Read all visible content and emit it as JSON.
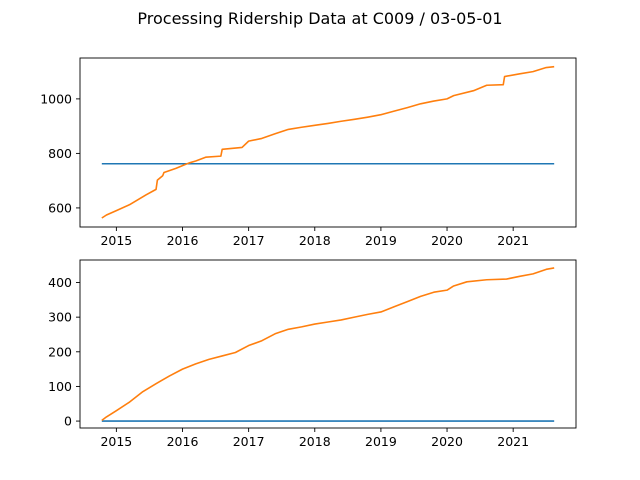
{
  "chart_data": {
    "title": "Processing Ridership Data at C009 / 03-05-01",
    "type": "line",
    "x_ticks": [
      "2015",
      "2016",
      "2017",
      "2018",
      "2019",
      "2020",
      "2021"
    ],
    "x_tick_values": [
      2015,
      2016,
      2017,
      2018,
      2019,
      2020,
      2021
    ],
    "xlim": [
      2014.45,
      2021.95
    ],
    "panels": [
      {
        "name": "top",
        "ylim": [
          530,
          1150
        ],
        "y_ticks": [
          "600",
          "800",
          "1000"
        ],
        "y_tick_values": [
          600,
          800,
          1000
        ],
        "series": [
          {
            "name": "baseline",
            "color": "#1f77b4",
            "x": [
              2014.78,
              2021.62
            ],
            "y": [
              762,
              762
            ]
          },
          {
            "name": "cumulative",
            "color": "#ff7f0e",
            "x": [
              2014.78,
              2014.85,
              2015.0,
              2015.2,
              2015.45,
              2015.6,
              2015.62,
              2015.7,
              2015.72,
              2015.9,
              2016.0,
              2016.1,
              2016.2,
              2016.35,
              2016.58,
              2016.6,
              2016.9,
              2017.0,
              2017.2,
              2017.4,
              2017.6,
              2017.8,
              2018.0,
              2018.2,
              2018.4,
              2018.6,
              2018.8,
              2019.0,
              2019.2,
              2019.4,
              2019.6,
              2019.8,
              2020.0,
              2020.1,
              2020.4,
              2020.6,
              2020.85,
              2020.87,
              2021.1,
              2021.3,
              2021.5,
              2021.62
            ],
            "y": [
              563,
              574,
              590,
              612,
              648,
              668,
              702,
              718,
              730,
              745,
              755,
              765,
              772,
              786,
              790,
              815,
              822,
              845,
              855,
              872,
              888,
              896,
              903,
              910,
              918,
              925,
              933,
              942,
              955,
              968,
              982,
              992,
              1000,
              1012,
              1030,
              1050,
              1052,
              1082,
              1092,
              1100,
              1115,
              1118
            ]
          }
        ]
      },
      {
        "name": "bottom",
        "ylim": [
          -20,
          465
        ],
        "y_ticks": [
          "0",
          "100",
          "200",
          "300",
          "400"
        ],
        "y_tick_values": [
          0,
          100,
          200,
          300,
          400
        ],
        "series": [
          {
            "name": "baseline",
            "color": "#1f77b4",
            "x": [
              2014.78,
              2021.62
            ],
            "y": [
              0,
              0
            ]
          },
          {
            "name": "cumulative",
            "color": "#ff7f0e",
            "x": [
              2014.78,
              2014.85,
              2015.0,
              2015.2,
              2015.4,
              2015.6,
              2015.8,
              2016.0,
              2016.2,
              2016.4,
              2016.6,
              2016.8,
              2017.0,
              2017.2,
              2017.4,
              2017.6,
              2017.8,
              2018.0,
              2018.2,
              2018.4,
              2018.6,
              2018.8,
              2019.0,
              2019.2,
              2019.4,
              2019.6,
              2019.8,
              2020.0,
              2020.1,
              2020.3,
              2020.6,
              2020.9,
              2021.1,
              2021.3,
              2021.5,
              2021.62
            ],
            "y": [
              2,
              12,
              30,
              55,
              85,
              108,
              130,
              150,
              165,
              178,
              188,
              198,
              218,
              232,
              252,
              265,
              272,
              280,
              286,
              292,
              300,
              308,
              315,
              330,
              345,
              360,
              372,
              378,
              390,
              402,
              408,
              410,
              418,
              425,
              438,
              442
            ]
          }
        ]
      }
    ]
  }
}
